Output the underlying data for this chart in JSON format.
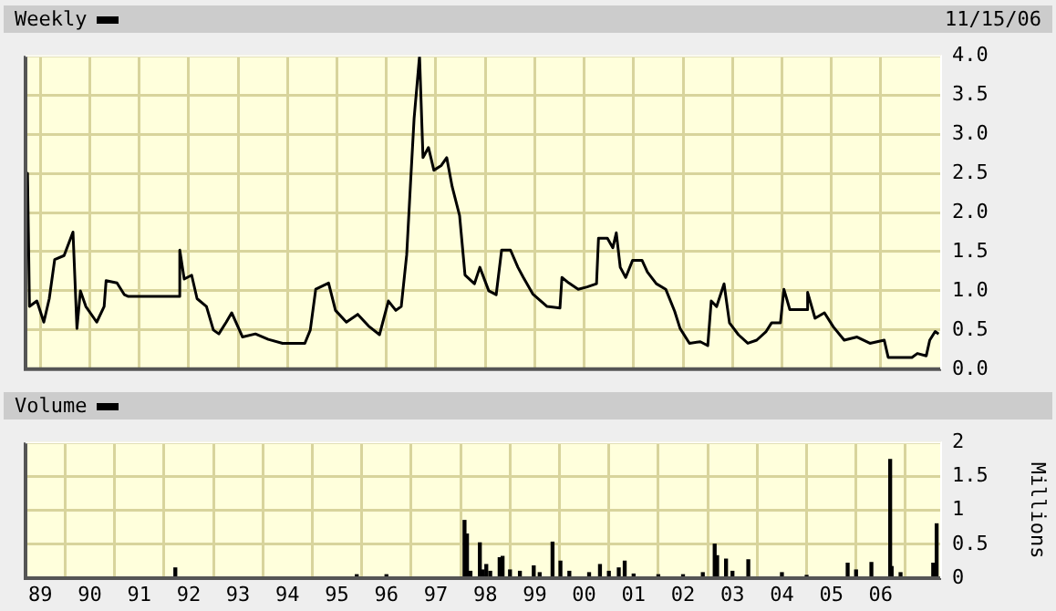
{
  "chart_data": [
    {
      "type": "line",
      "legend": "top left",
      "annotations": [
        "11/15/06"
      ],
      "grid": true,
      "tick_labels": "y",
      "line_style": "solid",
      "xlim": [
        1988.7,
        2007.22
      ],
      "xticks": [
        1989,
        1990,
        1991,
        1992,
        1993,
        1994,
        1995,
        1996,
        1997,
        1998,
        1999,
        2000,
        2001,
        2002,
        2003,
        2004,
        2005,
        2006
      ],
      "ylim": [
        0,
        4
      ],
      "yticks": [
        {
          "value": 0,
          "label": "0.0"
        },
        {
          "value": 0.5,
          "label": "0.5"
        },
        {
          "value": 1,
          "label": "1.0"
        },
        {
          "value": 1.5,
          "label": "1.5"
        },
        {
          "value": 2,
          "label": "2.0"
        },
        {
          "value": 2.5,
          "label": "2.5"
        },
        {
          "value": 3,
          "label": "3.0"
        },
        {
          "value": 3.5,
          "label": "3.5"
        },
        {
          "value": 4,
          "label": "4.0"
        }
      ],
      "series": [
        {
          "name": "Weekly",
          "color": "#000000",
          "x": [
            1988.72,
            1988.74,
            1988.78,
            1988.93,
            1989.07,
            1989.18,
            1989.29,
            1989.48,
            1989.66,
            1989.74,
            1989.81,
            1989.92,
            1990.14,
            1990.29,
            1990.33,
            1990.55,
            1990.7,
            1990.77,
            1991.8,
            1991.82,
            1991.91,
            1992.06,
            1992.17,
            1992.36,
            1992.5,
            1992.61,
            1992.76,
            1992.87,
            1993.09,
            1993.35,
            1993.61,
            1993.9,
            1994.35,
            1994.46,
            1994.57,
            1994.83,
            1994.97,
            1995.19,
            1995.42,
            1995.64,
            1995.86,
            1996.04,
            1996.19,
            1996.3,
            1996.41,
            1996.49,
            1996.56,
            1996.67,
            1996.74,
            1996.85,
            1996.96,
            1997.11,
            1997.22,
            1997.33,
            1997.48,
            1997.59,
            1997.78,
            1997.89,
            1998.07,
            1998.22,
            1998.33,
            1998.51,
            1998.66,
            1998.77,
            1998.96,
            1999.25,
            1999.51,
            1999.55,
            1999.69,
            1999.88,
            2000.06,
            2000.25,
            2000.29,
            2000.47,
            2000.58,
            2000.65,
            2000.73,
            2000.84,
            2000.98,
            2001.17,
            2001.28,
            2001.46,
            2001.65,
            2001.83,
            2001.94,
            2002.13,
            2002.35,
            2002.5,
            2002.57,
            2002.68,
            2002.83,
            2002.94,
            2003.12,
            2003.31,
            2003.49,
            2003.68,
            2003.79,
            2003.97,
            2004.04,
            2004.16,
            2004.49,
            2004.52,
            2004.67,
            2004.86,
            2005.04,
            2005.26,
            2005.52,
            2005.78,
            2006.07,
            2006.15,
            2006.37,
            2006.63,
            2006.74,
            2006.92,
            2006.99,
            2007.1,
            2007.17
          ],
          "values": [
            1.9,
            2.5,
            0.8,
            0.87,
            0.6,
            0.9,
            1.4,
            1.45,
            1.75,
            0.52,
            1.0,
            0.8,
            0.6,
            0.8,
            1.13,
            1.1,
            0.95,
            0.93,
            0.93,
            1.52,
            1.15,
            1.2,
            0.9,
            0.8,
            0.5,
            0.45,
            0.6,
            0.72,
            0.41,
            0.45,
            0.38,
            0.33,
            0.33,
            0.5,
            1.02,
            1.1,
            0.75,
            0.6,
            0.7,
            0.55,
            0.44,
            0.87,
            0.75,
            0.8,
            1.46,
            2.4,
            3.2,
            4.0,
            2.7,
            2.83,
            2.54,
            2.6,
            2.7,
            2.33,
            1.96,
            1.2,
            1.09,
            1.3,
            1.0,
            0.95,
            1.52,
            1.52,
            1.3,
            1.17,
            0.96,
            0.8,
            0.78,
            1.17,
            1.1,
            1.02,
            1.05,
            1.09,
            1.67,
            1.67,
            1.55,
            1.74,
            1.3,
            1.17,
            1.39,
            1.39,
            1.24,
            1.09,
            1.02,
            0.74,
            0.52,
            0.33,
            0.35,
            0.3,
            0.87,
            0.8,
            1.09,
            0.59,
            0.44,
            0.33,
            0.37,
            0.48,
            0.59,
            0.59,
            1.02,
            0.76,
            0.76,
            0.98,
            0.65,
            0.72,
            0.54,
            0.37,
            0.41,
            0.33,
            0.37,
            0.15,
            0.15,
            0.15,
            0.2,
            0.17,
            0.37,
            0.48,
            0.45
          ]
        }
      ]
    },
    {
      "type": "bar",
      "legend": "top left",
      "grid": true,
      "ylabel": "Millions",
      "xlim": [
        1988.7,
        2007.22
      ],
      "xticks": [
        {
          "value": 1989,
          "label": "89"
        },
        {
          "value": 1990,
          "label": "90"
        },
        {
          "value": 1991,
          "label": "91"
        },
        {
          "value": 1992,
          "label": "92"
        },
        {
          "value": 1993,
          "label": "93"
        },
        {
          "value": 1994,
          "label": "94"
        },
        {
          "value": 1995,
          "label": "95"
        },
        {
          "value": 1996,
          "label": "96"
        },
        {
          "value": 1997,
          "label": "97"
        },
        {
          "value": 1998,
          "label": "98"
        },
        {
          "value": 1999,
          "label": "99"
        },
        {
          "value": 2000,
          "label": "00"
        },
        {
          "value": 2001,
          "label": "01"
        },
        {
          "value": 2002,
          "label": "02"
        },
        {
          "value": 2003,
          "label": "03"
        },
        {
          "value": 2004,
          "label": "04"
        },
        {
          "value": 2005,
          "label": "05"
        },
        {
          "value": 2006,
          "label": "06"
        }
      ],
      "ylim": [
        0,
        2
      ],
      "yticks": [
        0,
        0.5,
        1,
        1.5,
        2
      ],
      "series": [
        {
          "name": "Volume",
          "color": "#000000",
          "x": [
            1991.73,
            1995.4,
            1996.0,
            1997.58,
            1997.63,
            1997.7,
            1997.89,
            1997.95,
            1998.02,
            1998.1,
            1998.29,
            1998.35,
            1998.5,
            1998.7,
            1998.98,
            1999.1,
            1999.36,
            1999.52,
            1999.7,
            2000.1,
            2000.32,
            2000.5,
            2000.7,
            2000.82,
            2001.0,
            2001.5,
            2002.0,
            2002.4,
            2002.64,
            2002.69,
            2002.87,
            2003.0,
            2003.32,
            2004.0,
            2004.5,
            2005.33,
            2005.5,
            2005.81,
            2006.19,
            2006.22,
            2006.4,
            2007.06,
            2007.13
          ],
          "values": [
            0.15,
            0.05,
            0.05,
            0.85,
            0.65,
            0.1,
            0.52,
            0.12,
            0.2,
            0.1,
            0.3,
            0.32,
            0.12,
            0.1,
            0.18,
            0.08,
            0.53,
            0.25,
            0.1,
            0.08,
            0.2,
            0.1,
            0.15,
            0.25,
            0.06,
            0.05,
            0.05,
            0.08,
            0.5,
            0.33,
            0.28,
            0.1,
            0.27,
            0.08,
            0.04,
            0.22,
            0.12,
            0.23,
            1.75,
            0.17,
            0.08,
            0.22,
            0.8
          ]
        }
      ]
    }
  ]
}
